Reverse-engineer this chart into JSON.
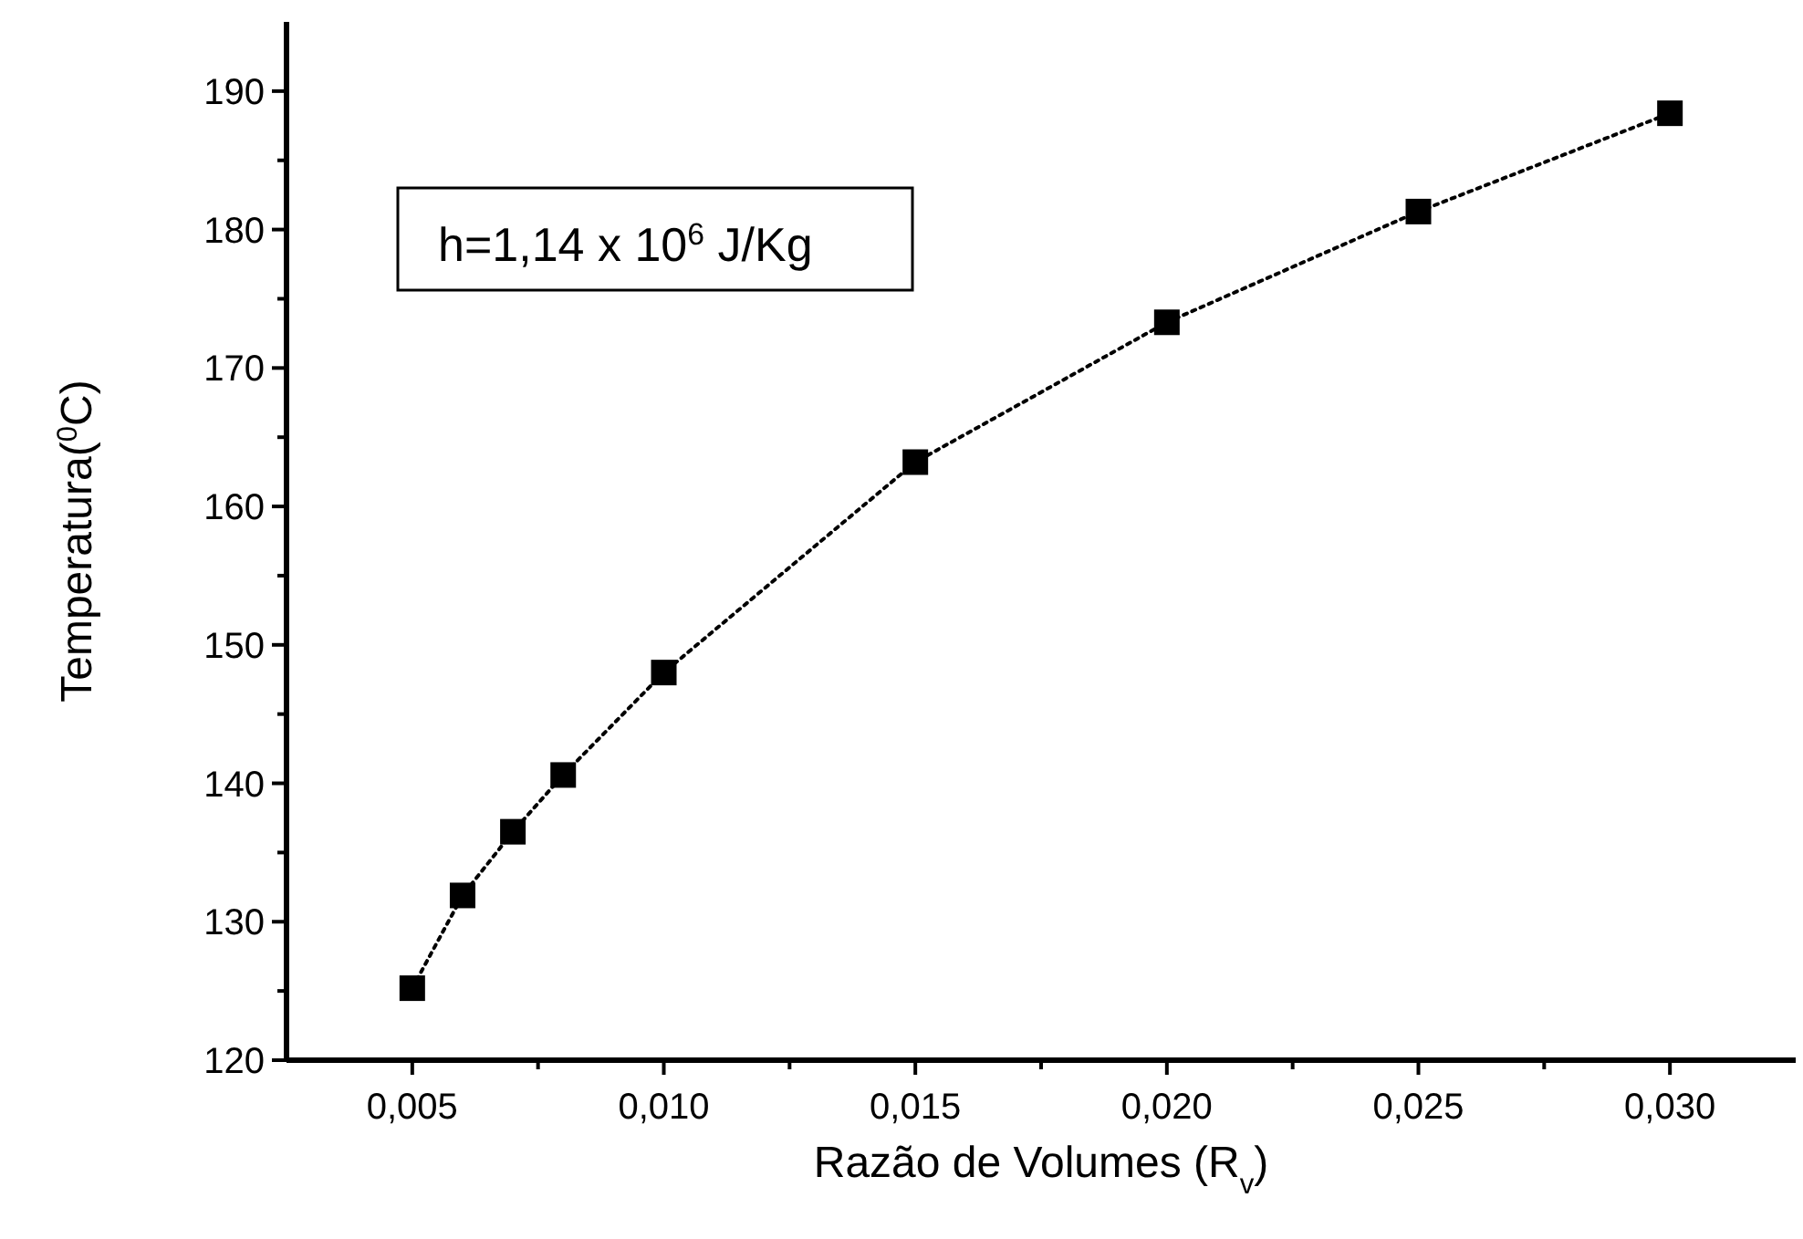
{
  "chart_data": {
    "type": "line",
    "xlabel": "Razão de Volumes (R$_{v}$)",
    "ylabel": "Temperatura($^{0}$C)",
    "annotations": [
      "h=1,14 x 10$^{6}$ J/Kg"
    ],
    "x": [
      0.005,
      0.006,
      0.007,
      0.008,
      0.01,
      0.015,
      0.02,
      0.025,
      0.03
    ],
    "series": [
      {
        "color": "#000000",
        "values": [
          125.2,
          131.9,
          136.5,
          140.6,
          148.0,
          163.2,
          173.3,
          181.3,
          188.4
        ]
      }
    ],
    "marker": "square",
    "line_style": "dotted",
    "xlim": [
      0.0025,
      0.0325
    ],
    "xticks": [
      {
        "value": 0.005,
        "label": "0,005"
      },
      {
        "value": 0.0075,
        "label": null
      },
      {
        "value": 0.01,
        "label": "0,010"
      },
      {
        "value": 0.0125,
        "label": null
      },
      {
        "value": 0.015,
        "label": "0,015"
      },
      {
        "value": 0.0175,
        "label": null
      },
      {
        "value": 0.02,
        "label": "0,020"
      },
      {
        "value": 0.0225,
        "label": null
      },
      {
        "value": 0.025,
        "label": "0,025"
      },
      {
        "value": 0.0275,
        "label": null
      },
      {
        "value": 0.03,
        "label": "0,030"
      }
    ],
    "ylim": [
      120,
      195
    ],
    "yticks": [
      120,
      {
        "value": 125,
        "label": null
      },
      130,
      {
        "value": 135,
        "label": null
      },
      140,
      {
        "value": 145,
        "label": null
      },
      150,
      {
        "value": 155,
        "label": null
      },
      160,
      {
        "value": 165,
        "label": null
      },
      170,
      {
        "value": 175,
        "label": null
      },
      180,
      {
        "value": 185,
        "label": null
      },
      190
    ]
  }
}
